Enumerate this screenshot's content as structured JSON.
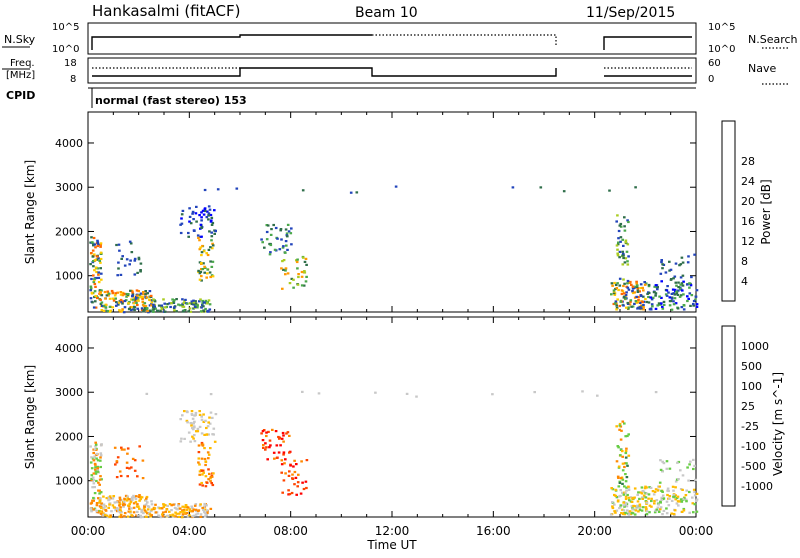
{
  "header": {
    "station": "Hankasalmi (fitACF)",
    "beam": "Beam 10",
    "date": "11/Sep/2015"
  },
  "top_panels": {
    "nsky_label": "N.Sky",
    "nsky_ticks": [
      "10^5",
      "10^0"
    ],
    "nsearch_label": "N.Search",
    "nsearch_ticks": [
      "10^5",
      "10^0"
    ],
    "freq_label_line1": "Freq.",
    "freq_label_line2": "[MHz]",
    "freq_ticks": [
      "18",
      "8"
    ],
    "nave_label": "Nave",
    "nave_ticks": [
      "60",
      "0"
    ],
    "cpid_label": "CPID",
    "cpid_text": "normal (fast stereo) 153"
  },
  "chart_data": [
    {
      "type": "heatmap",
      "name": "power",
      "ylabel": "Slant Range [km]",
      "xlabel": "Time UT",
      "xticks": [
        "00:00",
        "04:00",
        "08:00",
        "12:00",
        "16:00",
        "20:00",
        "00:00"
      ],
      "yticks": [
        1000,
        2000,
        3000,
        4000
      ],
      "xlim_hours": [
        0,
        24
      ],
      "ylim_km": [
        180,
        4700
      ],
      "colorbar_label": "Power [dB]",
      "colorbar_ticks": [
        4,
        8,
        12,
        16,
        20,
        24,
        28
      ],
      "colors": [
        "#0000ff",
        "#2244bb",
        "#2f6e4a",
        "#4aa84a",
        "#aacc22",
        "#ffcc00",
        "#ff9900",
        "#ff6600",
        "#ff0000"
      ]
    },
    {
      "type": "heatmap",
      "name": "velocity",
      "ylabel": "Slant Range [km]",
      "xlabel": "Time UT",
      "xticks": [
        "00:00",
        "04:00",
        "08:00",
        "12:00",
        "16:00",
        "20:00",
        "00:00"
      ],
      "yticks": [
        1000,
        2000,
        3000,
        4000
      ],
      "xlim_hours": [
        0,
        24
      ],
      "ylim_km": [
        180,
        4700
      ],
      "colorbar_label": "Velocity [m s^-1]",
      "colorbar_ticks": [
        "1000",
        "500",
        "100",
        "25",
        "-25",
        "-100",
        "-500",
        "-1000"
      ],
      "colors": [
        "#1133cc",
        "#2255aa",
        "#2f7a4a",
        "#66cc44",
        "#c8c8c8",
        "#ffbb00",
        "#ff8800",
        "#ff4400",
        "#ff0000"
      ]
    }
  ],
  "footer": {
    "xlabel": "Time UT"
  }
}
